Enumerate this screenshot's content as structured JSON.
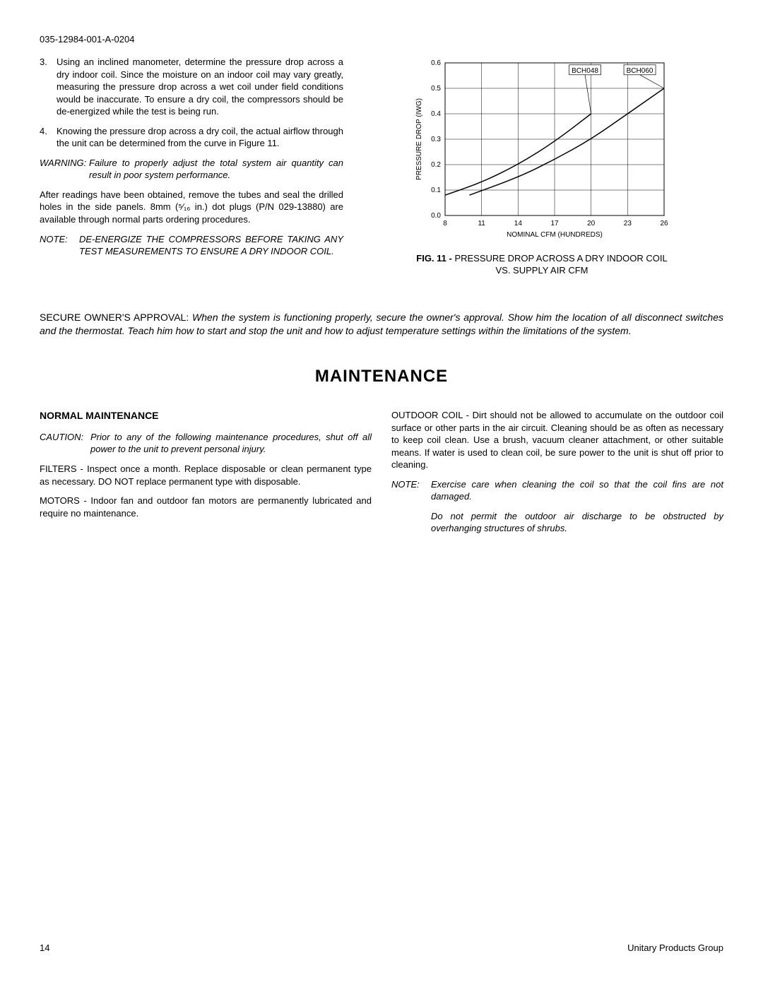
{
  "doc_id": "035-12984-001-A-0204",
  "list": {
    "item3": {
      "num": "3.",
      "text": "Using an inclined manometer, determine the pressure drop across a dry indoor coil. Since the moisture on an indoor coil may vary greatly, measuring the pressure drop across a wet coil under field conditions would be inaccurate. To ensure a dry coil, the compressors should be de-energized while the test is being run."
    },
    "item4": {
      "num": "4.",
      "text": "Knowing the pressure drop across a dry coil, the actual airflow through the unit can be determined from the curve in Figure 11."
    }
  },
  "warning": {
    "label": "WARNING:",
    "text": "Failure to properly adjust the total system air quantity can result in poor system performance."
  },
  "after_readings": "After readings have been obtained, remove the tubes and seal the drilled holes in the side panels. 8mm (⁵⁄₁₆ in.) dot plugs (P/N 029-13880) are available through normal parts ordering procedures.",
  "note1": {
    "label": "NOTE:",
    "text": "DE-ENERGIZE THE COMPRESSORS BEFORE TAKING ANY TEST MEASUREMENTS TO ENSURE A DRY INDOOR COIL."
  },
  "chart": {
    "type": "line",
    "caption_prefix": "FIG. 11 - ",
    "caption": "PRESSURE DROP ACROSS A DRY INDOOR COIL VS. SUPPLY AIR CFM",
    "x_label": "NOMINAL CFM (HUNDREDS)",
    "y_label": "PRESSURE DROP (IWG)",
    "x_ticks": [
      8,
      11,
      14,
      17,
      20,
      23,
      26
    ],
    "y_ticks": [
      "0.0",
      "0.1",
      "0.2",
      "0.3",
      "0.4",
      "0.5",
      "0.6"
    ],
    "xlim": [
      8,
      26
    ],
    "ylim": [
      0.0,
      0.6
    ],
    "series": [
      {
        "name": "BCH048",
        "label_pos": {
          "x": 19.5,
          "y": 0.57
        },
        "points": [
          {
            "x": 8,
            "y": 0.08
          },
          {
            "x": 11,
            "y": 0.13
          },
          {
            "x": 14,
            "y": 0.2
          },
          {
            "x": 17,
            "y": 0.29
          },
          {
            "x": 20,
            "y": 0.4
          }
        ]
      },
      {
        "name": "BCH060",
        "label_pos": {
          "x": 24,
          "y": 0.57
        },
        "points": [
          {
            "x": 10,
            "y": 0.08
          },
          {
            "x": 14,
            "y": 0.15
          },
          {
            "x": 17,
            "y": 0.22
          },
          {
            "x": 20,
            "y": 0.3
          },
          {
            "x": 23,
            "y": 0.4
          },
          {
            "x": 26,
            "y": 0.5
          }
        ]
      }
    ],
    "line_color": "#000000",
    "grid_color": "#000000",
    "background_color": "#ffffff",
    "font_size": 10,
    "line_width": 1.5
  },
  "approval": {
    "label": "SECURE OWNER'S APPROVAL: ",
    "text": "When the system is functioning properly, secure the owner's approval. Show him the location of all disconnect switches and the thermostat. Teach him how to start and stop the unit and how to adjust temperature settings within the limitations of the system."
  },
  "maintenance": {
    "heading": "MAINTENANCE",
    "normal_heading": "NORMAL MAINTENANCE",
    "caution": {
      "label": "CAUTION:",
      "text": "Prior to any of the following maintenance procedures, shut off all power to the unit to prevent personal injury."
    },
    "filters": "FILTERS - Inspect once a month. Replace disposable or clean permanent type as necessary. DO NOT replace permanent type with disposable.",
    "motors": "MOTORS - Indoor fan and outdoor fan motors are permanently lubricated and require no maintenance.",
    "outdoor_coil": "OUTDOOR COIL - Dirt should not be allowed to accumulate on the outdoor coil surface or other parts in the air circuit. Cleaning should be as often as necessary to keep coil clean. Use a brush, vacuum cleaner attachment, or other suitable means. If water is used to clean coil, be sure power to the unit is shut off prior to cleaning.",
    "note2": {
      "label": "NOTE:",
      "text": "Exercise care when cleaning the coil so that the coil fins are not damaged."
    },
    "discharge": "Do not permit the outdoor air discharge to be obstructed by overhanging structures of shrubs."
  },
  "footer": {
    "page": "14",
    "company": "Unitary Products Group"
  }
}
